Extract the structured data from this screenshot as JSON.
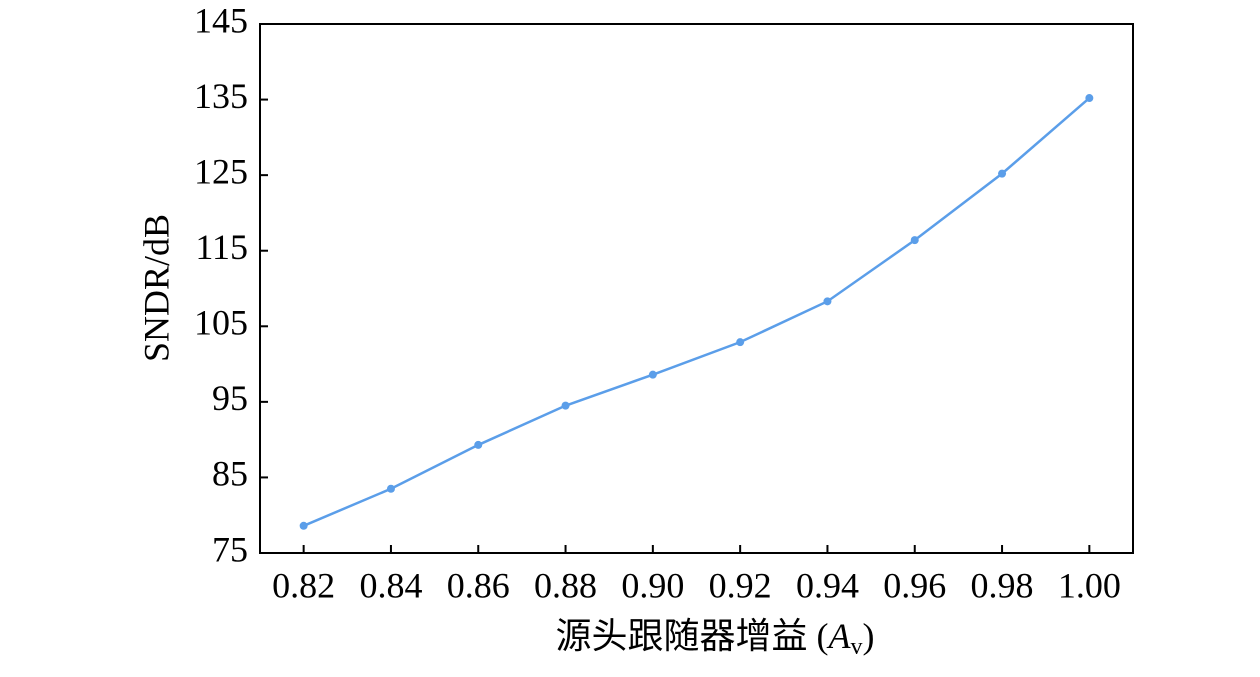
{
  "chart_data": {
    "type": "line",
    "x_label": [
      "源头跟随器增益 (",
      "A",
      "v",
      ")"
    ],
    "y_label": "SNDR/dB",
    "x": [
      0.82,
      0.84,
      0.86,
      0.88,
      0.9,
      0.92,
      0.94,
      0.96,
      0.98,
      1.0
    ],
    "series": [
      {
        "color": "#5b9ee9",
        "values": [
          78.6,
          83.5,
          89.3,
          94.5,
          98.6,
          102.9,
          108.3,
          116.4,
          125.2,
          135.2
        ]
      }
    ],
    "xlim": [
      0.81,
      1.01
    ],
    "xticks": [
      0.82,
      0.84,
      0.86,
      0.88,
      {
        "value": 0.9,
        "label": "0.90"
      },
      0.92,
      0.94,
      0.96,
      0.98,
      {
        "value": 1.0,
        "label": "1.00"
      }
    ],
    "ylim": [
      75,
      145
    ],
    "yticks": [
      75,
      85,
      95,
      105,
      115,
      125,
      135,
      145
    ],
    "grid": false
  }
}
